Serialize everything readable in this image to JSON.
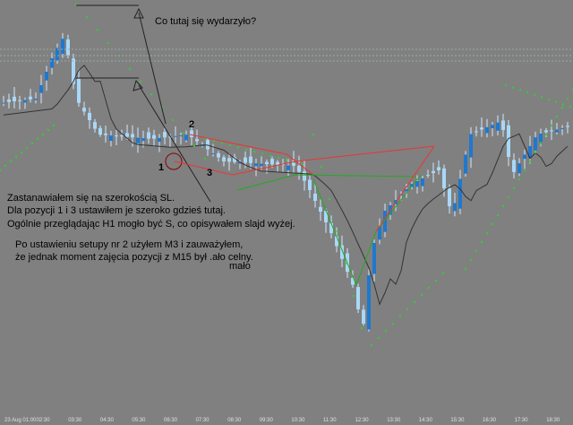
{
  "question": "Co tutaj się wydarzyło?",
  "markers": [
    "2",
    "1",
    "3"
  ],
  "notes": [
    "Zastanawiałem się na szerokością SL.",
    "Dla pozycji 1 i 3 ustawiłem je szeroko gdzieś tutaj.",
    "Ogólnie przeglądając H1 mogło być S, co opisywałem slajd wyżej."
  ],
  "notes2": [
    "Po ustawieniu setupy nr 2 użyłem M3 i zauważyłem,",
    "że jednak moment zajęcia pozycji z M15 był .ało celny.",
    "mało"
  ],
  "time_axis": [
    "23 Aug 01:00",
    "02:30",
    "03:30",
    "04:30",
    "05:30",
    "06:30",
    "07:30",
    "08:30",
    "09:30",
    "10:30",
    "11:30",
    "12:30",
    "13:30",
    "14:30",
    "15:30",
    "16:30",
    "17:30",
    "18:30"
  ]
}
